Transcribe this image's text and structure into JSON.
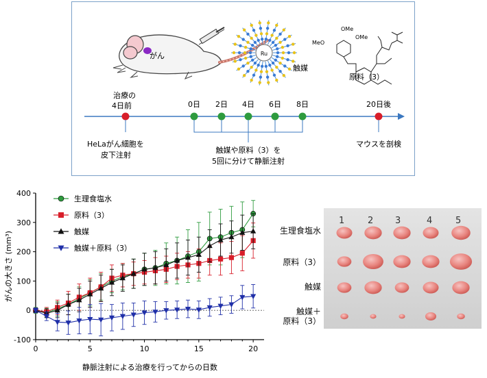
{
  "scheme": {
    "cancer_label": "がん",
    "catalyst_label": "触媒",
    "catalyst_metal": "Ru",
    "material_label": "原料（3）",
    "ome_1": "OMe",
    "ome_2": "OMe",
    "meo": "MeO",
    "timeline": {
      "start_label_1": "治療の",
      "start_label_2": "4日前",
      "days": [
        "0日",
        "2日",
        "4日",
        "6日",
        "8日"
      ],
      "end_label": "20日後",
      "inject_1": "HeLaがん細胞を",
      "inject_2": "皮下注射",
      "treat_1": "触媒や原料（3）を",
      "treat_2": "5回に分けて静脈注射",
      "end_desc": "マウスを剖検"
    },
    "colors": {
      "accent": "#3b78c0",
      "marker_red": "#d81e2a",
      "marker_green": "#2e9b3e"
    }
  },
  "chart_data": {
    "type": "line",
    "xlabel": "静脈注射による治療を行ってからの日数",
    "ylabel": "がんの大きさ (mm³)",
    "xlim": [
      0,
      21
    ],
    "ylim": [
      -100,
      400
    ],
    "xticks": [
      "0",
      "5",
      "10",
      "15",
      "20"
    ],
    "yticks": [
      "-100",
      "0",
      "100",
      "200",
      "300",
      "400"
    ],
    "x": [
      0,
      1,
      2,
      3,
      4,
      5,
      6,
      7,
      8,
      9,
      10,
      11,
      12,
      13,
      14,
      15,
      16,
      17,
      18,
      19,
      20
    ],
    "series": [
      {
        "name": "生理食塩水",
        "marker": "circle",
        "color": "#2e9b3e",
        "values": [
          0,
          -8,
          5,
          20,
          40,
          60,
          80,
          100,
          115,
          125,
          140,
          145,
          160,
          170,
          185,
          200,
          245,
          250,
          265,
          275,
          330
        ],
        "errors": [
          10,
          15,
          25,
          35,
          40,
          45,
          45,
          40,
          45,
          50,
          55,
          60,
          70,
          80,
          90,
          100,
          90,
          95,
          90,
          95,
          45
        ]
      },
      {
        "name": "原料（3）",
        "marker": "square",
        "color": "#d81e2a",
        "values": [
          0,
          -5,
          10,
          25,
          45,
          60,
          80,
          110,
          120,
          125,
          130,
          135,
          140,
          150,
          155,
          160,
          170,
          175,
          180,
          195,
          238
        ],
        "errors": [
          8,
          15,
          25,
          40,
          45,
          50,
          50,
          45,
          40,
          40,
          40,
          45,
          45,
          45,
          45,
          50,
          50,
          55,
          55,
          60,
          60
        ]
      },
      {
        "name": "触媒",
        "marker": "triangle-up",
        "color": "#111111",
        "values": [
          0,
          -10,
          0,
          20,
          35,
          55,
          75,
          95,
          110,
          125,
          140,
          145,
          155,
          170,
          180,
          190,
          220,
          240,
          250,
          265,
          270
        ],
        "errors": [
          8,
          15,
          25,
          35,
          40,
          45,
          45,
          45,
          45,
          50,
          55,
          55,
          55,
          60,
          60,
          60,
          55,
          55,
          55,
          60,
          60
        ]
      },
      {
        "name": "触媒＋原料（3）",
        "marker": "triangle-down",
        "color": "#1f2fa8",
        "values": [
          0,
          -20,
          -40,
          -42,
          -35,
          -30,
          -32,
          -25,
          -20,
          -15,
          -8,
          -5,
          0,
          2,
          5,
          2,
          10,
          15,
          20,
          45,
          48
        ],
        "errors": [
          8,
          15,
          30,
          40,
          45,
          50,
          55,
          45,
          45,
          40,
          40,
          35,
          30,
          30,
          30,
          30,
          30,
          30,
          30,
          40,
          40
        ]
      }
    ]
  },
  "photos": {
    "rows": [
      {
        "label_line1": "生理食塩水",
        "label_line2": ""
      },
      {
        "label_line1": "原料（3）",
        "label_line2": ""
      },
      {
        "label_line1": "触媒",
        "label_line2": ""
      },
      {
        "label_line1": "触媒＋",
        "label_line2": "原料（3）"
      }
    ],
    "column_numbers": [
      "1",
      "2",
      "3",
      "4",
      "5"
    ]
  }
}
